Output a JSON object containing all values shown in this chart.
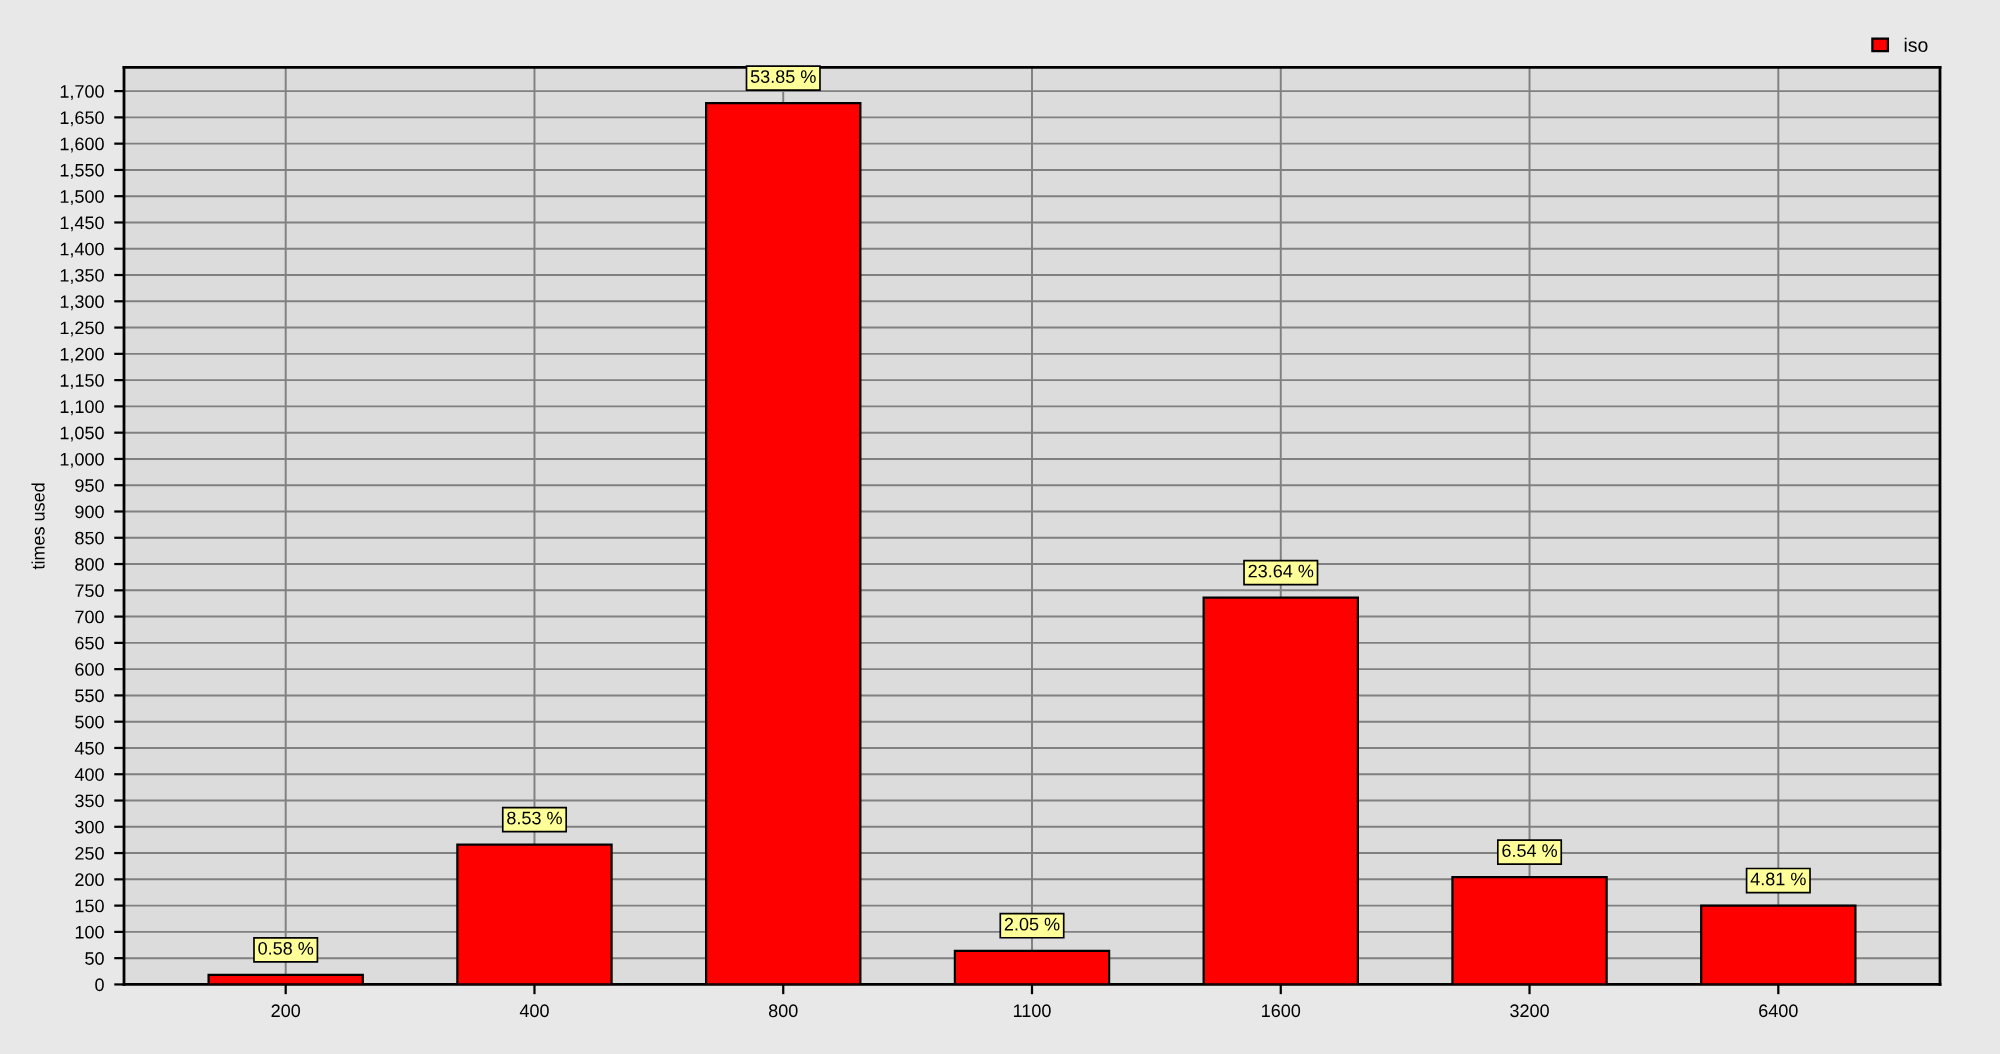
{
  "chart_data": {
    "type": "bar",
    "ylabel": "times used",
    "categories": [
      "200",
      "400",
      "800",
      "1100",
      "1600",
      "3200",
      "6400"
    ],
    "series": [
      {
        "name": "iso",
        "color": "#ff0000",
        "values": [
          18,
          266,
          1677,
          64,
          736,
          204,
          150
        ]
      }
    ],
    "annotations": [
      {
        "text": "0.58 %",
        "x": "200",
        "y": 18
      },
      {
        "text": "8.53 %",
        "x": "400",
        "y": 266
      },
      {
        "text": "53.85 %",
        "x": "800",
        "y": 1677
      },
      {
        "text": "2.05 %",
        "x": "1100",
        "y": 64
      },
      {
        "text": "23.64 %",
        "x": "1600",
        "y": 736
      },
      {
        "text": "6.54 %",
        "x": "3200",
        "y": 204
      },
      {
        "text": "4.81 %",
        "x": "6400",
        "y": 150
      }
    ],
    "ylim": [
      0,
      1745
    ],
    "yticks": [
      0,
      50,
      100,
      150,
      200,
      250,
      300,
      350,
      400,
      450,
      500,
      550,
      600,
      650,
      700,
      750,
      800,
      850,
      900,
      950,
      {
        "value": 1000,
        "label": "1,000"
      },
      {
        "value": 1050,
        "label": "1,050"
      },
      {
        "value": 1100,
        "label": "1,100"
      },
      {
        "value": 1150,
        "label": "1,150"
      },
      {
        "value": 1200,
        "label": "1,200"
      },
      {
        "value": 1250,
        "label": "1,250"
      },
      {
        "value": 1300,
        "label": "1,300"
      },
      {
        "value": 1350,
        "label": "1,350"
      },
      {
        "value": 1400,
        "label": "1,400"
      },
      {
        "value": 1450,
        "label": "1,450"
      },
      {
        "value": 1500,
        "label": "1,500"
      },
      {
        "value": 1550,
        "label": "1,550"
      },
      {
        "value": 1600,
        "label": "1,600"
      },
      {
        "value": 1650,
        "label": "1,650"
      },
      {
        "value": 1700,
        "label": "1,700"
      }
    ],
    "grid": true,
    "legend": "top right"
  }
}
